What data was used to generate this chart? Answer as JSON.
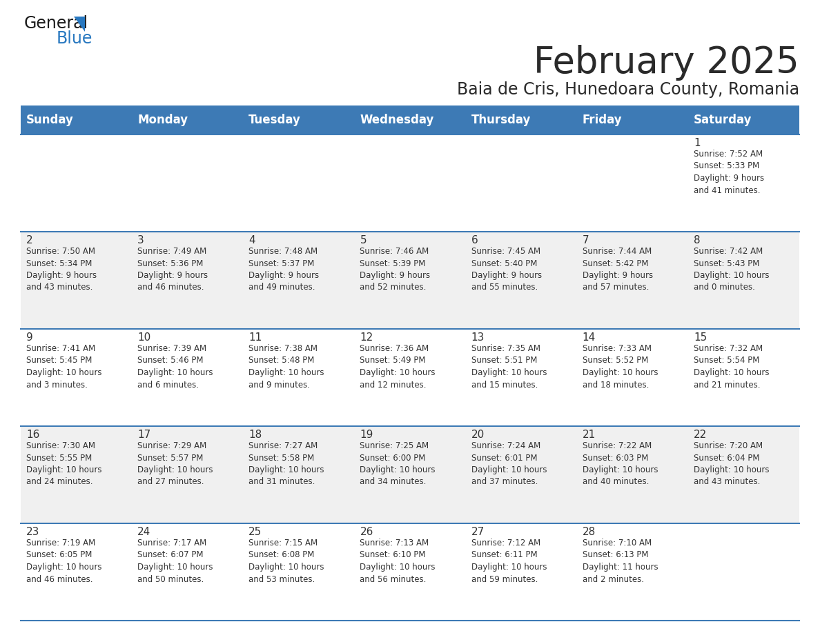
{
  "title": "February 2025",
  "subtitle": "Baia de Cris, Hunedoara County, Romania",
  "header_color": "#3D7AB5",
  "header_text_color": "#FFFFFF",
  "bg_color": "#FFFFFF",
  "alt_row_color": "#F0F0F0",
  "cell_text_color": "#333333",
  "border_color": "#3D7AB5",
  "days_of_week": [
    "Sunday",
    "Monday",
    "Tuesday",
    "Wednesday",
    "Thursday",
    "Friday",
    "Saturday"
  ],
  "weeks": [
    [
      {
        "day": "",
        "info": ""
      },
      {
        "day": "",
        "info": ""
      },
      {
        "day": "",
        "info": ""
      },
      {
        "day": "",
        "info": ""
      },
      {
        "day": "",
        "info": ""
      },
      {
        "day": "",
        "info": ""
      },
      {
        "day": "1",
        "info": "Sunrise: 7:52 AM\nSunset: 5:33 PM\nDaylight: 9 hours\nand 41 minutes."
      }
    ],
    [
      {
        "day": "2",
        "info": "Sunrise: 7:50 AM\nSunset: 5:34 PM\nDaylight: 9 hours\nand 43 minutes."
      },
      {
        "day": "3",
        "info": "Sunrise: 7:49 AM\nSunset: 5:36 PM\nDaylight: 9 hours\nand 46 minutes."
      },
      {
        "day": "4",
        "info": "Sunrise: 7:48 AM\nSunset: 5:37 PM\nDaylight: 9 hours\nand 49 minutes."
      },
      {
        "day": "5",
        "info": "Sunrise: 7:46 AM\nSunset: 5:39 PM\nDaylight: 9 hours\nand 52 minutes."
      },
      {
        "day": "6",
        "info": "Sunrise: 7:45 AM\nSunset: 5:40 PM\nDaylight: 9 hours\nand 55 minutes."
      },
      {
        "day": "7",
        "info": "Sunrise: 7:44 AM\nSunset: 5:42 PM\nDaylight: 9 hours\nand 57 minutes."
      },
      {
        "day": "8",
        "info": "Sunrise: 7:42 AM\nSunset: 5:43 PM\nDaylight: 10 hours\nand 0 minutes."
      }
    ],
    [
      {
        "day": "9",
        "info": "Sunrise: 7:41 AM\nSunset: 5:45 PM\nDaylight: 10 hours\nand 3 minutes."
      },
      {
        "day": "10",
        "info": "Sunrise: 7:39 AM\nSunset: 5:46 PM\nDaylight: 10 hours\nand 6 minutes."
      },
      {
        "day": "11",
        "info": "Sunrise: 7:38 AM\nSunset: 5:48 PM\nDaylight: 10 hours\nand 9 minutes."
      },
      {
        "day": "12",
        "info": "Sunrise: 7:36 AM\nSunset: 5:49 PM\nDaylight: 10 hours\nand 12 minutes."
      },
      {
        "day": "13",
        "info": "Sunrise: 7:35 AM\nSunset: 5:51 PM\nDaylight: 10 hours\nand 15 minutes."
      },
      {
        "day": "14",
        "info": "Sunrise: 7:33 AM\nSunset: 5:52 PM\nDaylight: 10 hours\nand 18 minutes."
      },
      {
        "day": "15",
        "info": "Sunrise: 7:32 AM\nSunset: 5:54 PM\nDaylight: 10 hours\nand 21 minutes."
      }
    ],
    [
      {
        "day": "16",
        "info": "Sunrise: 7:30 AM\nSunset: 5:55 PM\nDaylight: 10 hours\nand 24 minutes."
      },
      {
        "day": "17",
        "info": "Sunrise: 7:29 AM\nSunset: 5:57 PM\nDaylight: 10 hours\nand 27 minutes."
      },
      {
        "day": "18",
        "info": "Sunrise: 7:27 AM\nSunset: 5:58 PM\nDaylight: 10 hours\nand 31 minutes."
      },
      {
        "day": "19",
        "info": "Sunrise: 7:25 AM\nSunset: 6:00 PM\nDaylight: 10 hours\nand 34 minutes."
      },
      {
        "day": "20",
        "info": "Sunrise: 7:24 AM\nSunset: 6:01 PM\nDaylight: 10 hours\nand 37 minutes."
      },
      {
        "day": "21",
        "info": "Sunrise: 7:22 AM\nSunset: 6:03 PM\nDaylight: 10 hours\nand 40 minutes."
      },
      {
        "day": "22",
        "info": "Sunrise: 7:20 AM\nSunset: 6:04 PM\nDaylight: 10 hours\nand 43 minutes."
      }
    ],
    [
      {
        "day": "23",
        "info": "Sunrise: 7:19 AM\nSunset: 6:05 PM\nDaylight: 10 hours\nand 46 minutes."
      },
      {
        "day": "24",
        "info": "Sunrise: 7:17 AM\nSunset: 6:07 PM\nDaylight: 10 hours\nand 50 minutes."
      },
      {
        "day": "25",
        "info": "Sunrise: 7:15 AM\nSunset: 6:08 PM\nDaylight: 10 hours\nand 53 minutes."
      },
      {
        "day": "26",
        "info": "Sunrise: 7:13 AM\nSunset: 6:10 PM\nDaylight: 10 hours\nand 56 minutes."
      },
      {
        "day": "27",
        "info": "Sunrise: 7:12 AM\nSunset: 6:11 PM\nDaylight: 10 hours\nand 59 minutes."
      },
      {
        "day": "28",
        "info": "Sunrise: 7:10 AM\nSunset: 6:13 PM\nDaylight: 11 hours\nand 2 minutes."
      },
      {
        "day": "",
        "info": ""
      }
    ]
  ],
  "logo_text_general": "General",
  "logo_text_blue": "Blue",
  "title_fontsize": 38,
  "subtitle_fontsize": 17,
  "header_fontsize": 12,
  "day_num_fontsize": 11,
  "info_fontsize": 8.5
}
